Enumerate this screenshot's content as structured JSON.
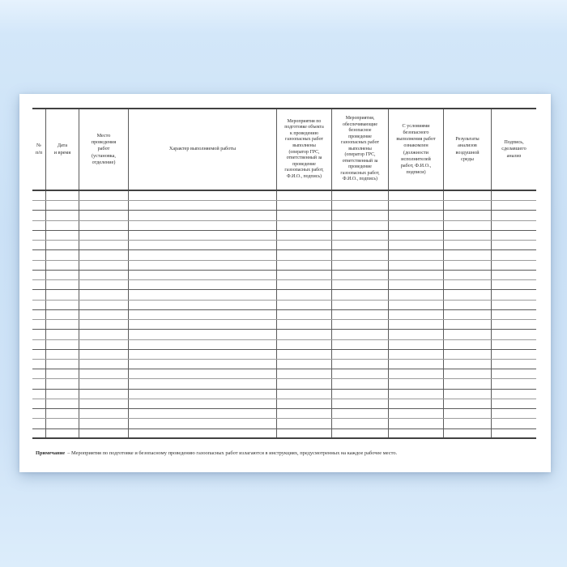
{
  "colors": {
    "background_top": "#e6f2fd",
    "background_main": "#cbe1f6",
    "background_bottom": "#dcedfb",
    "page": "#ffffff",
    "line_strong": "#424242",
    "line_medium": "#5c5c5c",
    "line_light": "#9c9c9c",
    "text": "#2e2e2e"
  },
  "document": {
    "table": {
      "columns": [
        {
          "id": "row-number",
          "label": "№\nп/п"
        },
        {
          "id": "date-time",
          "label": "Дата\nи время"
        },
        {
          "id": "work-location",
          "label": "Место\nпроведения\nработ\n(установка,\nотделение)"
        },
        {
          "id": "work-nature",
          "label": "Характер выполняемой работы"
        },
        {
          "id": "preparation-measures",
          "label": "Мероприятия по\nподготовке объекта\nк проведению\nгазоопасных работ\nвыполнены\n(оператор ГРС,\nответственный за\nпроведение\nгазоопасных работ,\nФ.И.О., подпись)"
        },
        {
          "id": "safety-measures",
          "label": "Мероприятия,\nобеспечивающие\nбезопасное\nпроведение\nгазоопасных работ\nвыполнены\n(оператор ГРС,\nответственный за\nпроведение\nгазоопасных работ,\nФ.И.О., подпись)"
        },
        {
          "id": "conditions-acknowledged",
          "label": "С условиями\nбезопасного\nвыполнения работ\nознакомлен\n(должности\nисполнителей\nработ, Ф.И.О.,\nподписи)"
        },
        {
          "id": "air-analysis-results",
          "label": "Результаты\nанализов\nвоздушной\nсреды"
        },
        {
          "id": "analyst-signature",
          "label": "Подпись,\nсделавшего\nанализ"
        }
      ],
      "empty_row_count": 25,
      "note": {
        "label": "Примечание",
        "text": "– Мероприятия по подготовке и безопасному проведению газоопасных работ излагаются в инструкциях, предусмотренных на каждое рабочее место."
      }
    }
  }
}
